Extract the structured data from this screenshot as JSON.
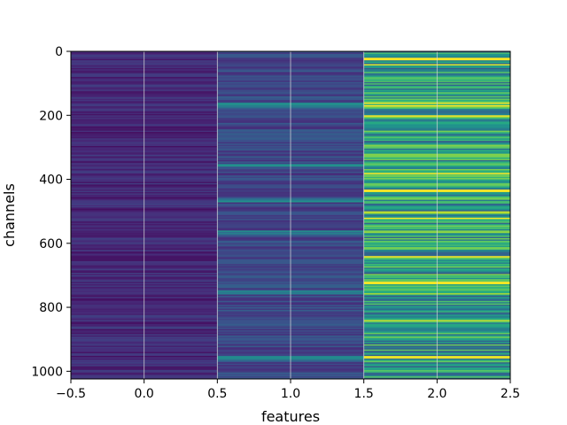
{
  "chart_data": {
    "type": "heatmap",
    "title": "",
    "xlabel": "features",
    "ylabel": "channels",
    "xlim": [
      -0.5,
      2.5
    ],
    "ylim": [
      1024,
      0
    ],
    "x_ticks": [
      -0.5,
      0.0,
      0.5,
      1.0,
      1.5,
      2.0,
      2.5
    ],
    "x_tick_labels": [
      "−0.5",
      "0.0",
      "0.5",
      "1.0",
      "1.5",
      "2.0",
      "2.5"
    ],
    "y_ticks": [
      0,
      200,
      400,
      600,
      800,
      1000
    ],
    "y_tick_labels": [
      "0",
      "200",
      "400",
      "600",
      "800",
      "1000"
    ],
    "grid": true,
    "colormap": "viridis",
    "n_rows": 1024,
    "columns": [
      {
        "x": 0,
        "typical_value": 0.12,
        "description": "low, mostly dark purple"
      },
      {
        "x": 1,
        "typical_value": 0.22,
        "description": "low-medium, blue-purple"
      },
      {
        "x": 2,
        "typical_value": 0.55,
        "description": "high, teal to yellow-green"
      }
    ],
    "highlight_rows": {
      "column_1": [
        [
          160,
          175
        ],
        [
          350,
          360
        ],
        [
          460,
          470
        ],
        [
          560,
          570
        ],
        [
          745,
          760
        ],
        [
          950,
          965
        ]
      ],
      "column_2": [
        [
          20,
          26
        ],
        [
          38,
          44
        ],
        [
          160,
          170
        ],
        [
          200,
          206
        ],
        [
          330,
          336
        ],
        [
          380,
          390
        ],
        [
          430,
          440
        ],
        [
          500,
          508
        ],
        [
          520,
          526
        ],
        [
          560,
          568
        ],
        [
          640,
          646
        ],
        [
          720,
          726
        ],
        [
          745,
          760
        ],
        [
          840,
          846
        ],
        [
          950,
          960
        ]
      ]
    },
    "colors": {
      "low": "#440154",
      "mid": "#31688e",
      "high": "#a0da39"
    }
  }
}
